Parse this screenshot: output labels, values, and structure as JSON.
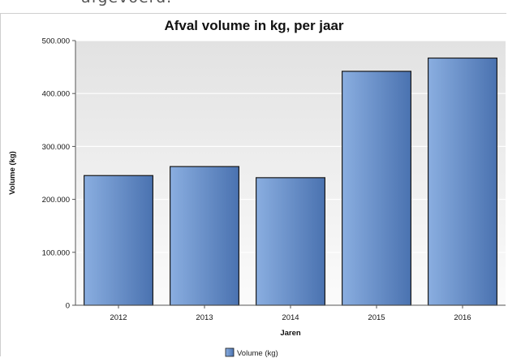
{
  "page": {
    "top_text": "afgevoerd."
  },
  "chart_data": {
    "type": "bar",
    "title": "Afval volume in kg, per jaar",
    "xlabel": "Jaren",
    "ylabel": "Volume (kg)",
    "categories": [
      "2012",
      "2013",
      "2014",
      "2015",
      "2016"
    ],
    "series": [
      {
        "name": "Volume (kg)",
        "values": [
          245000,
          262000,
          241000,
          442000,
          467000
        ]
      }
    ],
    "ylim": [
      0,
      500000
    ],
    "yticks": [
      0,
      100000,
      200000,
      300000,
      400000,
      500000
    ],
    "ytick_labels": [
      "0",
      "100.000",
      "200.000",
      "300.000",
      "400.000",
      "500.000"
    ],
    "grid": true,
    "legend_position": "bottom",
    "colors": {
      "bar_light": "#8aaee0",
      "bar_dark": "#4a72b0",
      "bar_stroke": "#1a1a1a",
      "plot_bg_top": "#e2e2e2",
      "plot_bg_bottom": "#fbfbfb",
      "grid": "#ffffff"
    }
  }
}
